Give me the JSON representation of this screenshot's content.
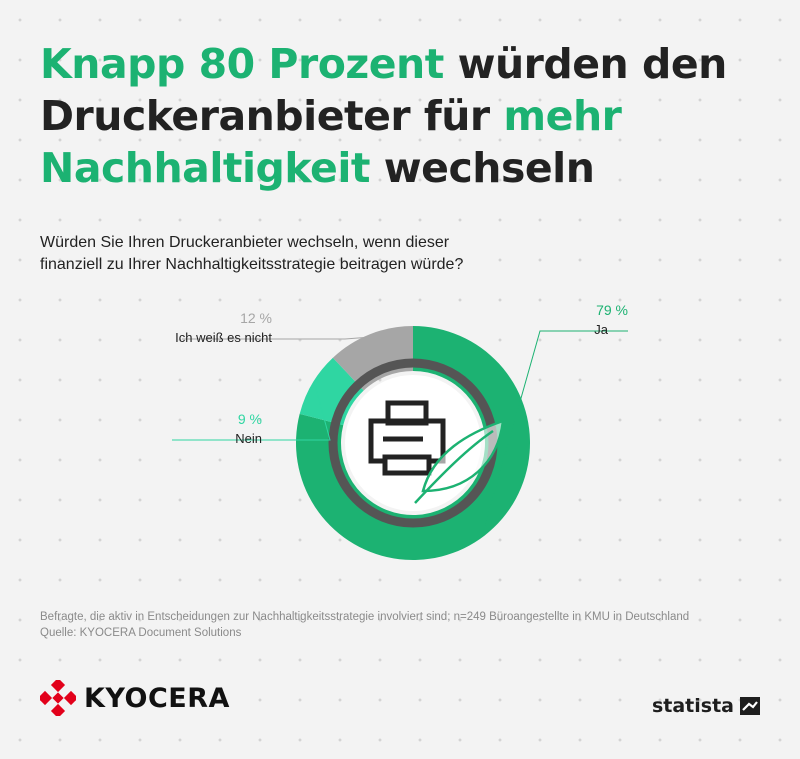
{
  "headline": {
    "parts": [
      {
        "text": "Knapp 80 Prozent",
        "highlight": true
      },
      {
        "text": " würden den Druckeranbieter für ",
        "highlight": false
      },
      {
        "text": "mehr Nachhaltigkeit",
        "highlight": true
      },
      {
        "text": " wechseln",
        "highlight": false
      }
    ]
  },
  "question": "Würden Sie Ihren Druckeranbieter wechseln, wenn dieser finanziell zu Ihrer Nachhaltigkeitsstrategie beitragen würde?",
  "chart_data": {
    "type": "pie",
    "donut": true,
    "slices": [
      {
        "label": "Ja",
        "value": 79,
        "value_label": "79 %",
        "color": "#1cb272"
      },
      {
        "label": "Nein",
        "value": 9,
        "value_label": "9 %",
        "color": "#2fd6a2"
      },
      {
        "label": "Ich weiß es nicht",
        "value": 12,
        "value_label": "12 %",
        "color": "#a6a6a6"
      }
    ],
    "center_icon": "printer-leaf-icon"
  },
  "footnote": {
    "line1": "Befragte, die aktiv in Entscheidungen zur Nachhaltigkeitsstrategie involviert sind; n=249 Büroangestellte in KMU in Deutschland",
    "line2": "Quelle: KYOCERA Document Solutions"
  },
  "branding": {
    "kyocera": "KYOCERA",
    "statista": "statista"
  },
  "colors": {
    "accent": "#1cb272",
    "background": "#f3f3f3"
  }
}
